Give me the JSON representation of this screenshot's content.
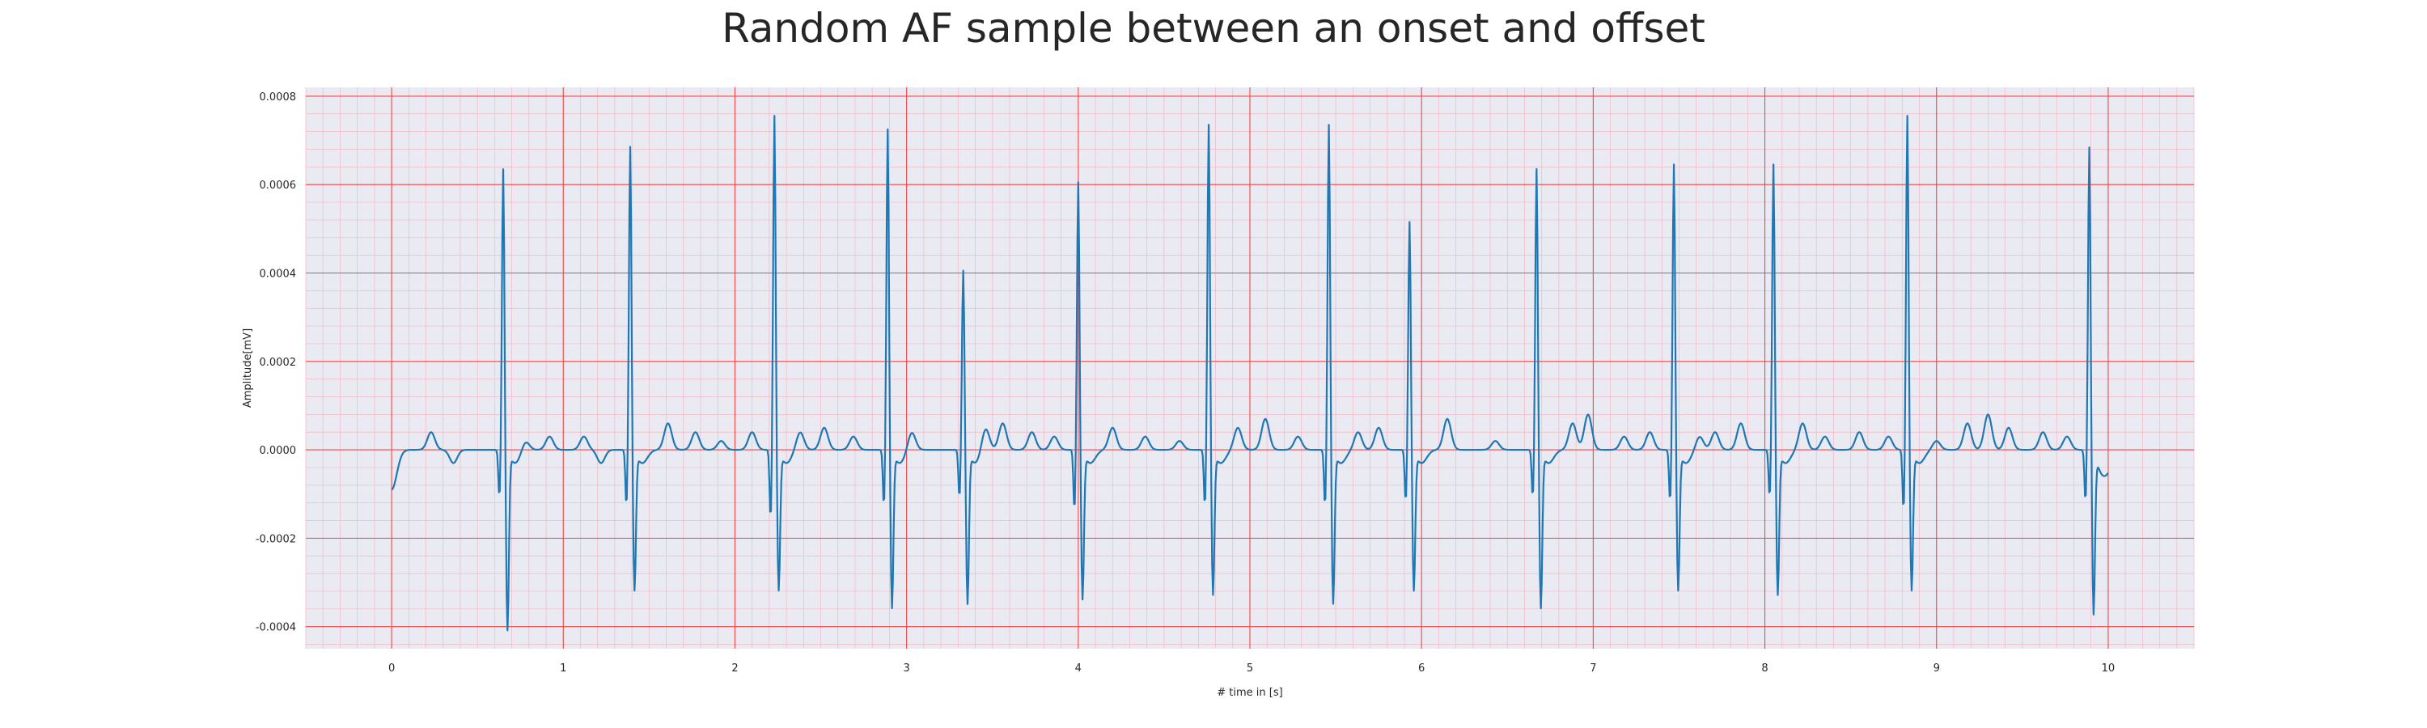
{
  "chart_data": {
    "type": "line",
    "title": "Random AF sample between an onset and offset",
    "xlabel": "# time in [s]",
    "ylabel": "Amplitude[mV]",
    "xlim": [
      -0.5,
      10.5
    ],
    "ylim": [
      -0.00045,
      0.00082
    ],
    "x_ticks": [
      0,
      1,
      2,
      3,
      4,
      5,
      6,
      7,
      8,
      9,
      10
    ],
    "x_tick_labels": [
      "0",
      "1",
      "2",
      "3",
      "4",
      "5",
      "6",
      "7",
      "8",
      "9",
      "10"
    ],
    "y_ticks": [
      -0.0004,
      -0.0002,
      0.0,
      0.0002,
      0.0004,
      0.0006,
      0.0008
    ],
    "y_tick_labels": [
      "-0.0004",
      "-0.0002",
      "0.0000",
      "0.0002",
      "0.0004",
      "0.0006",
      "0.0008"
    ],
    "grid": true,
    "minor_grid": true,
    "colors": {
      "line": "#1f77b4",
      "plot_background": "#eaeaf2",
      "major_grid": "#f04848",
      "minor_grid": "#f2b8c4",
      "text": "#262626"
    },
    "series": [
      {
        "name": "",
        "sample_rate_hz": 200,
        "beats": [
          {
            "t": 0.65,
            "r": 0.00064,
            "s": -0.0004,
            "q": -0.00011
          },
          {
            "t": 1.39,
            "r": 0.00069,
            "s": -0.00031,
            "q": -0.00013
          },
          {
            "t": 2.23,
            "r": 0.00076,
            "s": -0.00031,
            "q": -0.00016
          },
          {
            "t": 2.89,
            "r": 0.00073,
            "s": -0.00035,
            "q": -0.00013
          },
          {
            "t": 3.33,
            "r": 0.00041,
            "s": -0.00034,
            "q": -0.00011
          },
          {
            "t": 4.0,
            "r": 0.00061,
            "s": -0.00033,
            "q": -0.00014
          },
          {
            "t": 4.76,
            "r": 0.00074,
            "s": -0.00032,
            "q": -0.00013
          },
          {
            "t": 5.46,
            "r": 0.00074,
            "s": -0.00034,
            "q": -0.00013
          },
          {
            "t": 5.93,
            "r": 0.00052,
            "s": -0.00031,
            "q": -0.00012
          },
          {
            "t": 6.67,
            "r": 0.00064,
            "s": -0.00035,
            "q": -0.00011
          },
          {
            "t": 7.47,
            "r": 0.00065,
            "s": -0.00031,
            "q": -0.00012
          },
          {
            "t": 8.05,
            "r": 0.00065,
            "s": -0.00032,
            "q": -0.00011
          },
          {
            "t": 8.83,
            "r": 0.00076,
            "s": -0.00031,
            "q": -0.00014
          },
          {
            "t": 9.89,
            "r": 0.00069,
            "s": -0.00036,
            "q": -0.00012
          }
        ],
        "baseline_bumps": [
          {
            "t": 0.23,
            "a": 4e-05
          },
          {
            "t": 0.36,
            "a": -3e-05
          },
          {
            "t": 0.78,
            "a": 2e-05
          },
          {
            "t": 0.92,
            "a": 3e-05
          },
          {
            "t": 1.12,
            "a": 3e-05
          },
          {
            "t": 1.22,
            "a": -3e-05
          },
          {
            "t": 1.61,
            "a": 6e-05
          },
          {
            "t": 1.77,
            "a": 4e-05
          },
          {
            "t": 1.92,
            "a": 2e-05
          },
          {
            "t": 2.1,
            "a": 4e-05
          },
          {
            "t": 2.38,
            "a": 4e-05
          },
          {
            "t": 2.52,
            "a": 5e-05
          },
          {
            "t": 2.69,
            "a": 3e-05
          },
          {
            "t": 3.03,
            "a": 4e-05
          },
          {
            "t": 3.46,
            "a": 5e-05
          },
          {
            "t": 3.56,
            "a": 6e-05
          },
          {
            "t": 3.73,
            "a": 4e-05
          },
          {
            "t": 3.86,
            "a": 3e-05
          },
          {
            "t": 4.2,
            "a": 5e-05
          },
          {
            "t": 4.39,
            "a": 3e-05
          },
          {
            "t": 4.59,
            "a": 2e-05
          },
          {
            "t": 4.93,
            "a": 5e-05
          },
          {
            "t": 5.09,
            "a": 7e-05
          },
          {
            "t": 5.28,
            "a": 3e-05
          },
          {
            "t": 5.63,
            "a": 4e-05
          },
          {
            "t": 5.75,
            "a": 5e-05
          },
          {
            "t": 6.15,
            "a": 7e-05
          },
          {
            "t": 6.43,
            "a": 2e-05
          },
          {
            "t": 6.88,
            "a": 6e-05
          },
          {
            "t": 6.97,
            "a": 8e-05
          },
          {
            "t": 7.18,
            "a": 3e-05
          },
          {
            "t": 7.33,
            "a": 4e-05
          },
          {
            "t": 7.62,
            "a": 3e-05
          },
          {
            "t": 7.71,
            "a": 4e-05
          },
          {
            "t": 7.86,
            "a": 6e-05
          },
          {
            "t": 8.22,
            "a": 6e-05
          },
          {
            "t": 8.35,
            "a": 3e-05
          },
          {
            "t": 8.55,
            "a": 4e-05
          },
          {
            "t": 8.72,
            "a": 3e-05
          },
          {
            "t": 9.0,
            "a": 2e-05
          },
          {
            "t": 9.18,
            "a": 6e-05
          },
          {
            "t": 9.3,
            "a": 8e-05
          },
          {
            "t": 9.42,
            "a": 5e-05
          },
          {
            "t": 9.62,
            "a": 4e-05
          },
          {
            "t": 9.76,
            "a": 3e-05
          }
        ],
        "start_value": -9e-05,
        "end_value": -4e-05
      }
    ]
  }
}
